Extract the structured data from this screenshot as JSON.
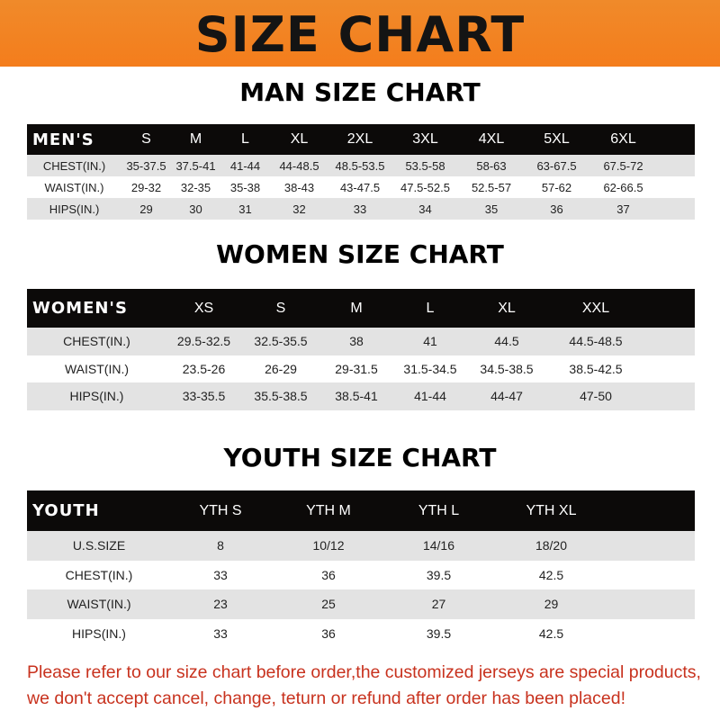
{
  "title": "SIZE CHART",
  "tables": [
    {
      "id": "men",
      "title": "MAN SIZE CHART",
      "header_label": "MEN'S",
      "sizes": [
        "S",
        "M",
        "L",
        "XL",
        "2XL",
        "3XL",
        "4XL",
        "5XL",
        "6XL"
      ],
      "rows": [
        {
          "label": "CHEST(IN.)",
          "values": [
            "35-37.5",
            "37.5-41",
            "41-44",
            "44-48.5",
            "48.5-53.5",
            "53.5-58",
            "58-63",
            "63-67.5",
            "67.5-72"
          ]
        },
        {
          "label": "WAIST(IN.)",
          "values": [
            "29-32",
            "32-35",
            "35-38",
            "38-43",
            "43-47.5",
            "47.5-52.5",
            "52.5-57",
            "57-62",
            "62-66.5"
          ]
        },
        {
          "label": "HIPS(IN.)",
          "values": [
            "29",
            "30",
            "31",
            "32",
            "33",
            "34",
            "35",
            "36",
            "37"
          ]
        }
      ]
    },
    {
      "id": "women",
      "title": "WOMEN SIZE CHART",
      "header_label": "WOMEN'S",
      "sizes": [
        "XS",
        "S",
        "M",
        "L",
        "XL",
        "XXL"
      ],
      "rows": [
        {
          "label": "CHEST(IN.)",
          "values": [
            "29.5-32.5",
            "32.5-35.5",
            "38",
            "41",
            "44.5",
            "44.5-48.5"
          ]
        },
        {
          "label": "WAIST(IN.)",
          "values": [
            "23.5-26",
            "26-29",
            "29-31.5",
            "31.5-34.5",
            "34.5-38.5",
            "38.5-42.5"
          ]
        },
        {
          "label": "HIPS(IN.)",
          "values": [
            "33-35.5",
            "35.5-38.5",
            "38.5-41",
            "41-44",
            "44-47",
            "47-50"
          ]
        }
      ]
    },
    {
      "id": "youth",
      "title": "YOUTH SIZE CHART",
      "header_label": "YOUTH",
      "sizes": [
        "YTH S",
        "YTH M",
        "YTH L",
        "YTH XL"
      ],
      "rows": [
        {
          "label": "U.S.SIZE",
          "values": [
            "8",
            "10/12",
            "14/16",
            "18/20"
          ]
        },
        {
          "label": "CHEST(IN.)",
          "values": [
            "33",
            "36",
            "39.5",
            "42.5"
          ]
        },
        {
          "label": "WAIST(IN.)",
          "values": [
            "23",
            "25",
            "27",
            "29"
          ]
        },
        {
          "label": "HIPS(IN.)",
          "values": [
            "33",
            "36",
            "39.5",
            "42.5"
          ]
        }
      ]
    }
  ],
  "footer": [
    "Please refer to our size chart before order,the customized jerseys are special products,",
    "we don't accept cancel, change, teturn or refund after order has been placed!"
  ],
  "colors": {
    "banner": "#f47d1c",
    "header_row": "#0c0a09",
    "stripe": "#e3e3e3",
    "notice": "#c8321e"
  }
}
